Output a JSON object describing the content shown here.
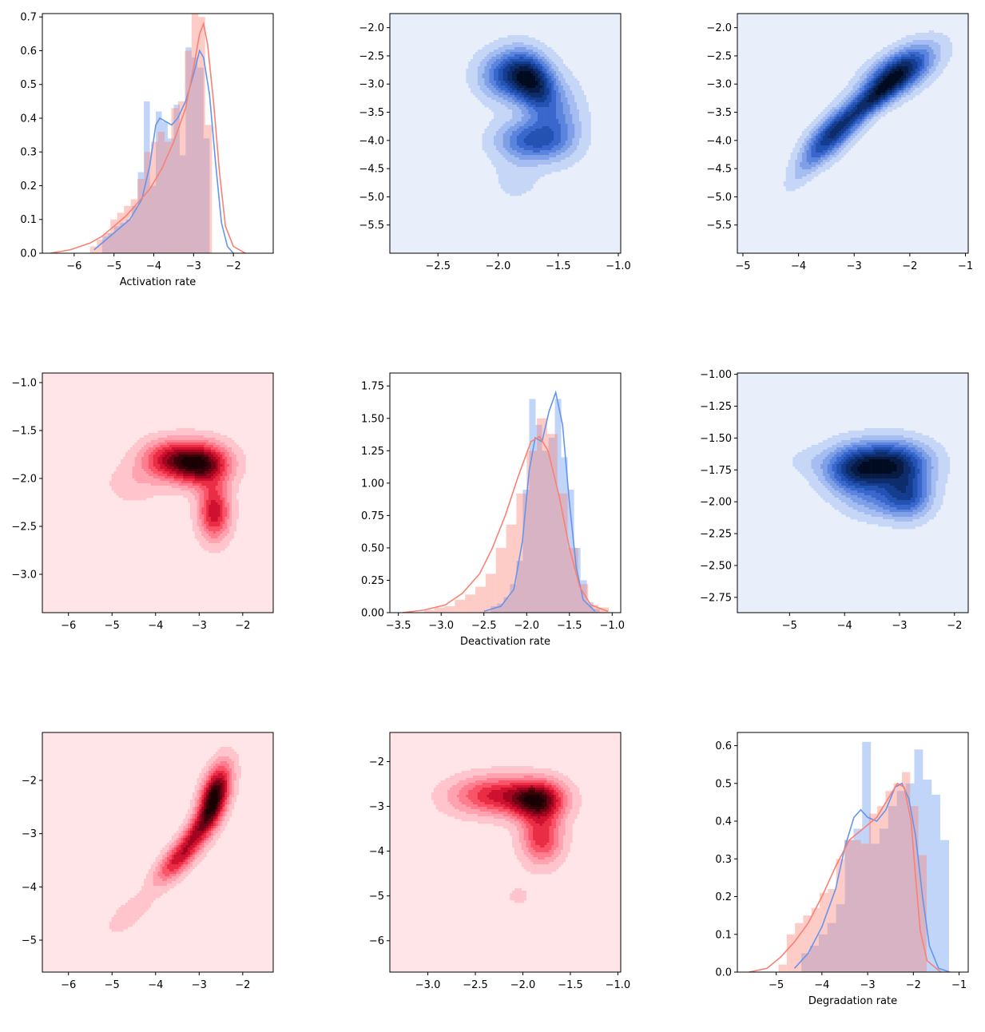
{
  "colors": {
    "blue": "#6495ed",
    "red": "#fa8072",
    "blue_bg": "#e8effb",
    "red_bg": "#ffe5e8"
  },
  "chart_data": [
    {
      "type": "histogram",
      "xlabel": "Activation rate",
      "xlim": [
        -6.8,
        -1.0
      ],
      "ylim": [
        0,
        0.71
      ],
      "xticks": [
        "-6",
        "-5",
        "-4",
        "-3",
        "-2"
      ],
      "yticks": [
        "0.0",
        "0.1",
        "0.2",
        "0.3",
        "0.4",
        "0.5",
        "0.6",
        "0.7"
      ],
      "series": [
        {
          "color": "blue",
          "bin_start": -5.3,
          "bin_width": 0.15,
          "values": [
            0.05,
            0.06,
            0.08,
            0.09,
            0.1,
            0.14,
            0.24,
            0.45,
            0.2,
            0.42,
            0.39,
            0.34,
            0.44,
            0.29,
            0.61,
            0.58,
            0.55,
            0.34
          ],
          "kde": [
            [
              -5.5,
              0.01
            ],
            [
              -5.2,
              0.04
            ],
            [
              -4.9,
              0.07
            ],
            [
              -4.6,
              0.1
            ],
            [
              -4.3,
              0.16
            ],
            [
              -4.1,
              0.26
            ],
            [
              -3.95,
              0.38
            ],
            [
              -3.85,
              0.4
            ],
            [
              -3.7,
              0.39
            ],
            [
              -3.55,
              0.38
            ],
            [
              -3.4,
              0.4
            ],
            [
              -3.2,
              0.45
            ],
            [
              -3.0,
              0.53
            ],
            [
              -2.85,
              0.6
            ],
            [
              -2.75,
              0.58
            ],
            [
              -2.6,
              0.47
            ],
            [
              -2.45,
              0.27
            ],
            [
              -2.3,
              0.09
            ],
            [
              -2.15,
              0.02
            ],
            [
              -2.0,
              0.0
            ]
          ]
        },
        {
          "color": "red",
          "bin_start": -5.6,
          "bin_width": 0.17,
          "values": [
            0.02,
            0.04,
            0.06,
            0.1,
            0.12,
            0.14,
            0.16,
            0.22,
            0.3,
            0.33,
            0.36,
            0.33,
            0.43,
            0.45,
            0.6,
            0.76,
            0.7,
            0.38
          ],
          "kde": [
            [
              -6.6,
              0.0
            ],
            [
              -6.1,
              0.01
            ],
            [
              -5.6,
              0.03
            ],
            [
              -5.3,
              0.05
            ],
            [
              -5.0,
              0.08
            ],
            [
              -4.7,
              0.11
            ],
            [
              -4.4,
              0.15
            ],
            [
              -4.1,
              0.19
            ],
            [
              -3.8,
              0.25
            ],
            [
              -3.5,
              0.33
            ],
            [
              -3.2,
              0.43
            ],
            [
              -3.0,
              0.55
            ],
            [
              -2.85,
              0.65
            ],
            [
              -2.75,
              0.68
            ],
            [
              -2.65,
              0.62
            ],
            [
              -2.5,
              0.45
            ],
            [
              -2.35,
              0.24
            ],
            [
              -2.2,
              0.08
            ],
            [
              -2.0,
              0.02
            ],
            [
              -1.7,
              0.0
            ]
          ]
        }
      ]
    },
    {
      "type": "kde2d",
      "color": "blue",
      "xlim": [
        -2.9,
        -0.98
      ],
      "ylim": [
        -6.0,
        -1.75
      ],
      "xticks": [
        "-2.5",
        "-2.0",
        "-1.5",
        "-1.0"
      ],
      "yticks": [
        "-2.0",
        "-2.5",
        "-3.0",
        "-3.5",
        "-4.0",
        "-4.5",
        "-5.0",
        "-5.5"
      ],
      "peaks": [
        {
          "x": -1.9,
          "y": -2.85,
          "w": 0.45,
          "sx": 0.17,
          "sy": 0.3
        },
        {
          "x": -1.7,
          "y": -3.0,
          "w": 0.5,
          "sx": 0.13,
          "sy": 0.35,
          "r": -0.3
        },
        {
          "x": -1.72,
          "y": -4.0,
          "w": 0.4,
          "sx": 0.2,
          "sy": 0.25
        },
        {
          "x": -1.85,
          "y": -4.7,
          "w": 0.07,
          "sx": 0.15,
          "sy": 0.3
        },
        {
          "x": -1.5,
          "y": -3.6,
          "w": 0.2,
          "sx": 0.15,
          "sy": 0.45
        }
      ]
    },
    {
      "type": "kde2d",
      "color": "blue",
      "xlim": [
        -5.1,
        -0.95
      ],
      "ylim": [
        -6.0,
        -1.75
      ],
      "xticks": [
        "-5",
        "-4",
        "-3",
        "-2",
        "-1"
      ],
      "yticks": [
        "-2.0",
        "-2.5",
        "-3.0",
        "-3.5",
        "-4.0",
        "-4.5",
        "-5.0",
        "-5.5"
      ],
      "peaks": [
        {
          "x": -3.4,
          "y": -3.9,
          "w": 0.45,
          "sx": 0.35,
          "sy": 0.35,
          "r": 0.7
        },
        {
          "x": -2.2,
          "y": -2.8,
          "w": 0.55,
          "sx": 0.42,
          "sy": 0.32,
          "r": 0.6
        },
        {
          "x": -2.7,
          "y": -3.3,
          "w": 0.35,
          "sx": 0.35,
          "sy": 0.3,
          "r": 0.8
        },
        {
          "x": -3.9,
          "y": -4.5,
          "w": 0.08,
          "sx": 0.25,
          "sy": 0.3,
          "r": 0.8
        }
      ]
    },
    {
      "type": "kde2d",
      "color": "red",
      "xlim": [
        -6.6,
        -1.3
      ],
      "ylim": [
        -3.4,
        -0.9
      ],
      "xticks": [
        "-6",
        "-5",
        "-4",
        "-3",
        "-2"
      ],
      "yticks": [
        "-1.0",
        "-1.5",
        "-2.0",
        "-2.5",
        "-3.0"
      ],
      "peaks": [
        {
          "x": -2.95,
          "y": -1.85,
          "w": 0.55,
          "sx": 0.45,
          "sy": 0.15
        },
        {
          "x": -3.7,
          "y": -1.8,
          "w": 0.35,
          "sx": 0.45,
          "sy": 0.14
        },
        {
          "x": -2.65,
          "y": -2.35,
          "w": 0.4,
          "sx": 0.25,
          "sy": 0.2
        },
        {
          "x": -4.5,
          "y": -2.05,
          "w": 0.08,
          "sx": 0.45,
          "sy": 0.15
        }
      ]
    },
    {
      "type": "histogram",
      "xlabel": "Deactivation rate",
      "xlim": [
        -3.6,
        -0.9
      ],
      "ylim": [
        0,
        1.85
      ],
      "xticks": [
        "-3.5",
        "-3.0",
        "-2.5",
        "-2.0",
        "-1.5",
        "-1.0"
      ],
      "yticks": [
        "0.00",
        "0.25",
        "0.50",
        "0.75",
        "1.00",
        "1.25",
        "1.50",
        "1.75"
      ],
      "series": [
        {
          "color": "blue",
          "bin_start": -2.42,
          "bin_width": 0.075,
          "values": [
            0.05,
            0.07,
            0.12,
            0.22,
            0.4,
            0.95,
            1.65,
            1.45,
            1.25,
            1.35,
            1.65,
            1.2,
            0.95,
            0.5,
            0.25,
            0.08,
            0.03
          ],
          "kde": [
            [
              -2.5,
              0.01
            ],
            [
              -2.3,
              0.05
            ],
            [
              -2.15,
              0.18
            ],
            [
              -2.05,
              0.55
            ],
            [
              -1.97,
              1.1
            ],
            [
              -1.9,
              1.35
            ],
            [
              -1.82,
              1.32
            ],
            [
              -1.74,
              1.55
            ],
            [
              -1.66,
              1.7
            ],
            [
              -1.58,
              1.45
            ],
            [
              -1.5,
              0.85
            ],
            [
              -1.42,
              0.35
            ],
            [
              -1.34,
              0.1
            ],
            [
              -1.2,
              0.01
            ]
          ]
        },
        {
          "color": "red",
          "bin_start": -3.2,
          "bin_width": 0.12,
          "values": [
            0.02,
            0.04,
            0.05,
            0.1,
            0.14,
            0.2,
            0.3,
            0.5,
            0.68,
            0.92,
            1.25,
            1.5,
            1.38,
            0.92,
            0.5,
            0.22,
            0.06,
            0.04
          ],
          "kde": [
            [
              -3.45,
              0.0
            ],
            [
              -3.2,
              0.02
            ],
            [
              -2.95,
              0.06
            ],
            [
              -2.75,
              0.15
            ],
            [
              -2.55,
              0.3
            ],
            [
              -2.4,
              0.5
            ],
            [
              -2.25,
              0.75
            ],
            [
              -2.1,
              1.05
            ],
            [
              -1.95,
              1.32
            ],
            [
              -1.85,
              1.36
            ],
            [
              -1.75,
              1.25
            ],
            [
              -1.62,
              0.9
            ],
            [
              -1.5,
              0.5
            ],
            [
              -1.38,
              0.2
            ],
            [
              -1.25,
              0.06
            ],
            [
              -1.05,
              0.01
            ]
          ]
        }
      ]
    },
    {
      "type": "kde2d",
      "color": "blue",
      "xlim": [
        -5.95,
        -1.75
      ],
      "ylim": [
        -2.87,
        -0.99
      ],
      "xticks": [
        "-5",
        "-4",
        "-3",
        "-2"
      ],
      "yticks": [
        "-1.00",
        "-1.25",
        "-1.50",
        "-1.75",
        "-2.00",
        "-2.25",
        "-2.50",
        "-2.75"
      ],
      "peaks": [
        {
          "x": -3.1,
          "y": -1.7,
          "w": 0.5,
          "sx": 0.45,
          "sy": 0.12
        },
        {
          "x": -3.8,
          "y": -1.75,
          "w": 0.45,
          "sx": 0.4,
          "sy": 0.13
        },
        {
          "x": -2.85,
          "y": -1.95,
          "w": 0.35,
          "sx": 0.3,
          "sy": 0.12
        },
        {
          "x": -3.4,
          "y": -2.0,
          "w": 0.15,
          "sx": 0.4,
          "sy": 0.1
        },
        {
          "x": -4.7,
          "y": -1.68,
          "w": 0.05,
          "sx": 0.3,
          "sy": 0.08
        }
      ]
    },
    {
      "type": "kde2d",
      "color": "red",
      "xlim": [
        -6.6,
        -1.3
      ],
      "ylim": [
        -5.6,
        -1.1
      ],
      "xticks": [
        "-6",
        "-5",
        "-4",
        "-3",
        "-2"
      ],
      "yticks": [
        "-2",
        "-3",
        "-4",
        "-5"
      ],
      "peaks": [
        {
          "x": -2.65,
          "y": -2.3,
          "w": 0.65,
          "sx": 0.25,
          "sy": 0.4,
          "r": 0.5
        },
        {
          "x": -3.5,
          "y": -3.5,
          "w": 0.35,
          "sx": 0.35,
          "sy": 0.3,
          "r": 0.7
        },
        {
          "x": -4.6,
          "y": -4.5,
          "w": 0.08,
          "sx": 0.4,
          "sy": 0.3,
          "r": 0.7
        },
        {
          "x": -3.05,
          "y": -2.95,
          "w": 0.3,
          "sx": 0.3,
          "sy": 0.3,
          "r": 0.7
        }
      ]
    },
    {
      "type": "kde2d",
      "color": "red",
      "xlim": [
        -3.4,
        -0.97
      ],
      "ylim": [
        -6.7,
        -1.35
      ],
      "xticks": [
        "-3.0",
        "-2.5",
        "-2.0",
        "-1.5",
        "-1.0"
      ],
      "yticks": [
        "-2",
        "-3",
        "-4",
        "-5",
        "-6"
      ],
      "peaks": [
        {
          "x": -1.85,
          "y": -2.85,
          "w": 0.6,
          "sx": 0.2,
          "sy": 0.3
        },
        {
          "x": -2.3,
          "y": -2.75,
          "w": 0.35,
          "sx": 0.25,
          "sy": 0.3
        },
        {
          "x": -1.8,
          "y": -3.7,
          "w": 0.35,
          "sx": 0.15,
          "sy": 0.4
        },
        {
          "x": -2.7,
          "y": -2.8,
          "w": 0.07,
          "sx": 0.2,
          "sy": 0.3
        },
        {
          "x": -2.05,
          "y": -5.0,
          "w": 0.05,
          "sx": 0.15,
          "sy": 0.25
        }
      ]
    },
    {
      "type": "histogram",
      "xlabel": "Degradation rate",
      "xlim": [
        -5.85,
        -0.8
      ],
      "ylim": [
        0,
        0.635
      ],
      "xticks": [
        "-5",
        "-4",
        "-3",
        "-2",
        "-1"
      ],
      "yticks": [
        "0.0",
        "0.1",
        "0.2",
        "0.3",
        "0.4",
        "0.5",
        "0.6"
      ],
      "series": [
        {
          "color": "blue",
          "bin_start": -4.45,
          "bin_width": 0.19,
          "values": [
            0.05,
            0.07,
            0.1,
            0.13,
            0.18,
            0.35,
            0.38,
            0.61,
            0.34,
            0.38,
            0.44,
            0.48,
            0.5,
            0.59,
            0.51,
            0.47,
            0.35
          ],
          "kde": [
            [
              -4.6,
              0.01
            ],
            [
              -4.3,
              0.05
            ],
            [
              -4.0,
              0.12
            ],
            [
              -3.7,
              0.22
            ],
            [
              -3.5,
              0.33
            ],
            [
              -3.3,
              0.41
            ],
            [
              -3.15,
              0.43
            ],
            [
              -3.0,
              0.41
            ],
            [
              -2.8,
              0.4
            ],
            [
              -2.6,
              0.43
            ],
            [
              -2.4,
              0.49
            ],
            [
              -2.25,
              0.5
            ],
            [
              -2.1,
              0.46
            ],
            [
              -1.95,
              0.36
            ],
            [
              -1.8,
              0.2
            ],
            [
              -1.65,
              0.07
            ],
            [
              -1.45,
              0.01
            ],
            [
              -1.2,
              0.0
            ]
          ]
        },
        {
          "color": "red",
          "bin_start": -4.95,
          "bin_width": 0.18,
          "values": [
            0.02,
            0.1,
            0.13,
            0.15,
            0.17,
            0.21,
            0.22,
            0.3,
            0.35,
            0.35,
            0.34,
            0.42,
            0.44,
            0.48,
            0.5,
            0.53,
            0.44,
            0.31
          ],
          "kde": [
            [
              -5.6,
              0.0
            ],
            [
              -5.2,
              0.01
            ],
            [
              -4.9,
              0.04
            ],
            [
              -4.6,
              0.08
            ],
            [
              -4.3,
              0.13
            ],
            [
              -4.0,
              0.2
            ],
            [
              -3.7,
              0.28
            ],
            [
              -3.4,
              0.35
            ],
            [
              -3.1,
              0.38
            ],
            [
              -2.8,
              0.41
            ],
            [
              -2.55,
              0.46
            ],
            [
              -2.35,
              0.5
            ],
            [
              -2.2,
              0.49
            ],
            [
              -2.05,
              0.4
            ],
            [
              -1.95,
              0.25
            ],
            [
              -1.85,
              0.11
            ],
            [
              -1.7,
              0.03
            ],
            [
              -1.4,
              0.0
            ]
          ]
        }
      ]
    }
  ]
}
